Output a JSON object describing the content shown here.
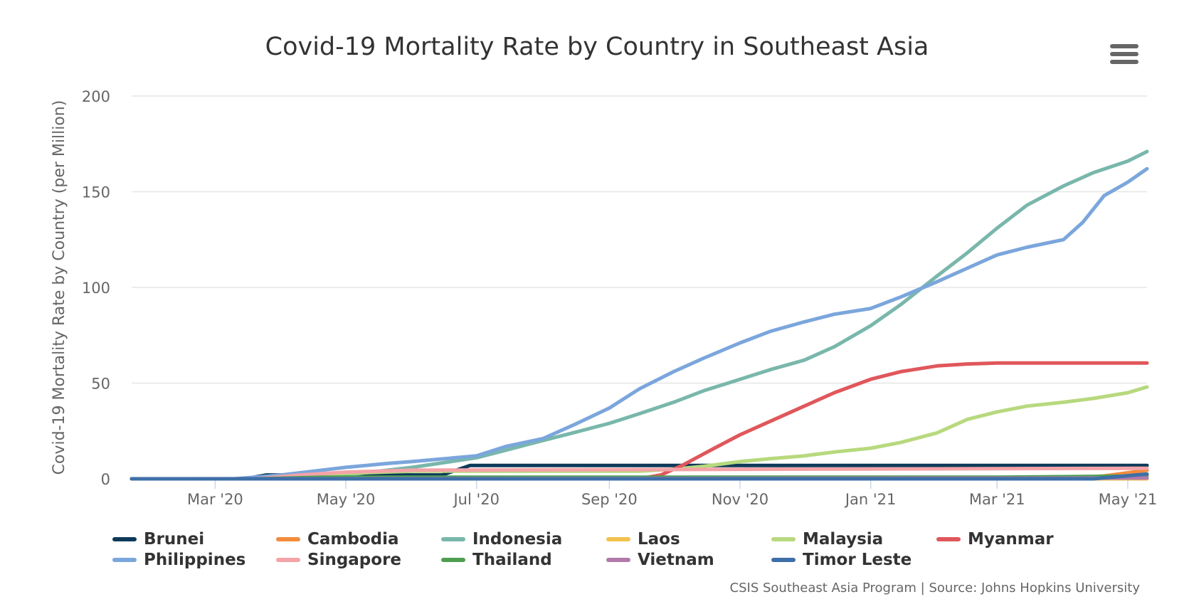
{
  "title": "Covid-19 Mortality Rate by Country in Southeast Asia",
  "credits": "CSIS Southeast Asia Program | Source: Johns Hopkins University",
  "chart_data": {
    "type": "line",
    "title": "Covid-19 Mortality Rate by Country in Southeast Asia",
    "xlabel": "",
    "ylabel": "Covid-19 Mortality Rate by Country (per Million)",
    "ylim": [
      0,
      200
    ],
    "yticks": [
      0,
      50,
      100,
      150,
      200
    ],
    "xlim": [
      "2020-01-22",
      "2021-05-10"
    ],
    "xticks": [
      {
        "date": "2020-03-01",
        "label": "Mar '20"
      },
      {
        "date": "2020-05-01",
        "label": "May '20"
      },
      {
        "date": "2020-07-01",
        "label": "Jul '20"
      },
      {
        "date": "2020-09-01",
        "label": "Sep '20"
      },
      {
        "date": "2020-11-01",
        "label": "Nov '20"
      },
      {
        "date": "2021-01-01",
        "label": "Jan '21"
      },
      {
        "date": "2021-03-01",
        "label": "Mar '21"
      },
      {
        "date": "2021-05-01",
        "label": "May '21"
      }
    ],
    "grid": true,
    "legend_position": "bottom",
    "series": [
      {
        "name": "Brunei",
        "color": "#0e3a5a",
        "points": [
          [
            "2020-01-22",
            0
          ],
          [
            "2020-03-01",
            0
          ],
          [
            "2020-03-15",
            0
          ],
          [
            "2020-03-25",
            2
          ],
          [
            "2020-05-01",
            2
          ],
          [
            "2020-06-15",
            2
          ],
          [
            "2020-06-28",
            7
          ],
          [
            "2021-05-10",
            7
          ]
        ]
      },
      {
        "name": "Cambodia",
        "color": "#f28c3c",
        "points": [
          [
            "2020-01-22",
            0
          ],
          [
            "2021-04-01",
            0
          ],
          [
            "2021-04-20",
            1.5
          ],
          [
            "2021-05-10",
            4.5
          ]
        ]
      },
      {
        "name": "Indonesia",
        "color": "#79b7ab",
        "points": [
          [
            "2020-01-22",
            0
          ],
          [
            "2020-03-15",
            0
          ],
          [
            "2020-04-01",
            1
          ],
          [
            "2020-05-01",
            2
          ],
          [
            "2020-06-01",
            6
          ],
          [
            "2020-07-01",
            11
          ],
          [
            "2020-07-15",
            15
          ],
          [
            "2020-08-01",
            20
          ],
          [
            "2020-08-15",
            24
          ],
          [
            "2020-09-01",
            29
          ],
          [
            "2020-09-15",
            34
          ],
          [
            "2020-10-01",
            40
          ],
          [
            "2020-10-15",
            46
          ],
          [
            "2020-11-01",
            52
          ],
          [
            "2020-11-15",
            57
          ],
          [
            "2020-12-01",
            62
          ],
          [
            "2020-12-15",
            69
          ],
          [
            "2021-01-01",
            80
          ],
          [
            "2021-01-15",
            91
          ],
          [
            "2021-02-01",
            106
          ],
          [
            "2021-02-15",
            118
          ],
          [
            "2021-03-01",
            131
          ],
          [
            "2021-03-15",
            143
          ],
          [
            "2021-04-01",
            153
          ],
          [
            "2021-04-15",
            160
          ],
          [
            "2021-05-01",
            166
          ],
          [
            "2021-05-10",
            171
          ]
        ]
      },
      {
        "name": "Laos",
        "color": "#f2c14e",
        "points": [
          [
            "2020-01-22",
            0
          ],
          [
            "2021-05-10",
            0
          ]
        ]
      },
      {
        "name": "Malaysia",
        "color": "#b7d97d",
        "points": [
          [
            "2020-01-22",
            0
          ],
          [
            "2020-03-20",
            0
          ],
          [
            "2020-04-10",
            2
          ],
          [
            "2020-06-01",
            4
          ],
          [
            "2020-09-15",
            4
          ],
          [
            "2020-10-01",
            5
          ],
          [
            "2020-10-15",
            6.5
          ],
          [
            "2020-11-01",
            9
          ],
          [
            "2020-11-15",
            10.5
          ],
          [
            "2020-12-01",
            12
          ],
          [
            "2020-12-15",
            14
          ],
          [
            "2021-01-01",
            16
          ],
          [
            "2021-01-15",
            19
          ],
          [
            "2021-02-01",
            24
          ],
          [
            "2021-02-15",
            31
          ],
          [
            "2021-03-01",
            35
          ],
          [
            "2021-03-15",
            38
          ],
          [
            "2021-04-01",
            40
          ],
          [
            "2021-04-15",
            42
          ],
          [
            "2021-05-01",
            45
          ],
          [
            "2021-05-10",
            48
          ]
        ]
      },
      {
        "name": "Myanmar",
        "color": "#e0575b",
        "points": [
          [
            "2020-01-22",
            0
          ],
          [
            "2020-09-15",
            0
          ],
          [
            "2020-09-25",
            2
          ],
          [
            "2020-10-05",
            7
          ],
          [
            "2020-10-20",
            16
          ],
          [
            "2020-11-01",
            23
          ],
          [
            "2020-11-15",
            30
          ],
          [
            "2020-12-01",
            38
          ],
          [
            "2020-12-15",
            45
          ],
          [
            "2021-01-01",
            52
          ],
          [
            "2021-01-15",
            56
          ],
          [
            "2021-02-01",
            59
          ],
          [
            "2021-02-15",
            60
          ],
          [
            "2021-03-01",
            60.5
          ],
          [
            "2021-05-10",
            60.5
          ]
        ]
      },
      {
        "name": "Philippines",
        "color": "#7ba6dc",
        "points": [
          [
            "2020-01-22",
            0
          ],
          [
            "2020-03-10",
            0
          ],
          [
            "2020-04-01",
            2
          ],
          [
            "2020-05-01",
            6
          ],
          [
            "2020-05-20",
            8
          ],
          [
            "2020-06-01",
            9
          ],
          [
            "2020-07-01",
            12
          ],
          [
            "2020-07-15",
            17
          ],
          [
            "2020-08-01",
            21
          ],
          [
            "2020-08-15",
            28
          ],
          [
            "2020-09-01",
            37
          ],
          [
            "2020-09-15",
            47
          ],
          [
            "2020-10-01",
            56
          ],
          [
            "2020-10-15",
            63
          ],
          [
            "2020-11-01",
            71
          ],
          [
            "2020-11-15",
            77
          ],
          [
            "2020-12-01",
            82
          ],
          [
            "2020-12-15",
            86
          ],
          [
            "2021-01-01",
            89
          ],
          [
            "2021-01-15",
            95
          ],
          [
            "2021-02-01",
            103
          ],
          [
            "2021-02-15",
            110
          ],
          [
            "2021-03-01",
            117
          ],
          [
            "2021-03-15",
            121
          ],
          [
            "2021-04-01",
            125
          ],
          [
            "2021-04-10",
            134
          ],
          [
            "2021-04-20",
            148
          ],
          [
            "2021-05-01",
            155
          ],
          [
            "2021-05-10",
            162
          ]
        ]
      },
      {
        "name": "Singapore",
        "color": "#f4a3a8",
        "points": [
          [
            "2020-01-22",
            0
          ],
          [
            "2020-03-20",
            0
          ],
          [
            "2020-04-10",
            2
          ],
          [
            "2020-05-01",
            3.5
          ],
          [
            "2020-06-01",
            4.5
          ],
          [
            "2021-05-10",
            5.5
          ]
        ]
      },
      {
        "name": "Thailand",
        "color": "#4c9f50",
        "points": [
          [
            "2020-01-22",
            0
          ],
          [
            "2020-03-20",
            0
          ],
          [
            "2020-04-20",
            0.8
          ],
          [
            "2021-03-01",
            0.8
          ],
          [
            "2021-05-10",
            1.5
          ]
        ]
      },
      {
        "name": "Vietnam",
        "color": "#b17aab",
        "points": [
          [
            "2020-01-22",
            0
          ],
          [
            "2021-05-10",
            0.4
          ]
        ]
      },
      {
        "name": "Timor Leste",
        "color": "#3e6fa8",
        "points": [
          [
            "2020-01-22",
            0
          ],
          [
            "2021-04-15",
            0
          ],
          [
            "2021-05-10",
            2.5
          ]
        ]
      }
    ]
  }
}
